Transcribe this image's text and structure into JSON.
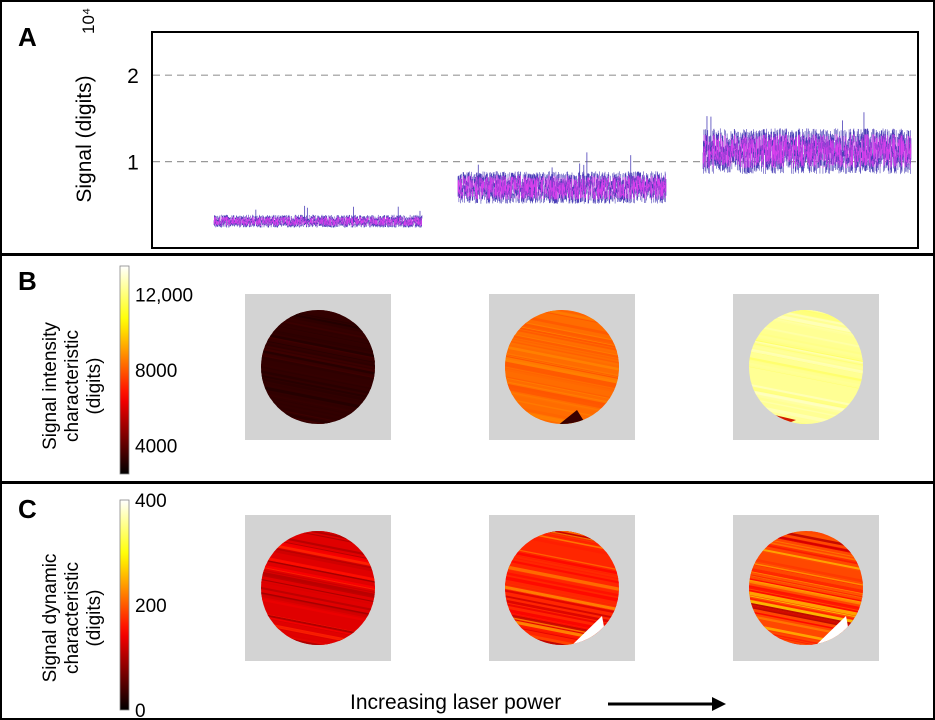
{
  "panels": {
    "a": {
      "letter": "A",
      "exponent_label": "10⁴",
      "ylabel": "Signal (digits)"
    },
    "b": {
      "letter": "B",
      "colorbar_title": [
        "Signal intensity",
        "characteristic",
        "(digits)"
      ]
    },
    "c": {
      "letter": "C",
      "colorbar_title": [
        "Signal dynamic",
        "characteristic",
        "(digits)"
      ]
    }
  },
  "caption": "Increasing laser power",
  "colors": {
    "trace_main": "#e040f0",
    "trace_edge": "#4b3fb8",
    "grid": "#999999",
    "map_background": "#d3d3d3"
  },
  "chart_data": [
    {
      "type": "line",
      "panel": "A",
      "ylabel": "Signal (digits)",
      "y_multiplier": "10^4",
      "yticks": [
        1,
        2
      ],
      "ytick_labels": [
        "1",
        "2"
      ],
      "ylim": [
        0,
        2.5
      ],
      "grid": "dashed horizontal at y=1 and y=2",
      "series": [
        {
          "mean": 0.31,
          "min": 0.22,
          "max": 0.52
        },
        {
          "mean": 0.7,
          "min": 0.36,
          "max": 1.12
        },
        {
          "mean": 1.12,
          "min": 0.55,
          "max": 1.62
        }
      ]
    },
    {
      "type": "heatmap",
      "panel": "B",
      "colorbar_ticks": [
        4000,
        8000,
        12000
      ],
      "colorbar_tick_labels": [
        "4000",
        "8000",
        "12,000"
      ],
      "colorbar_range": [
        2500,
        13500
      ],
      "maps": [
        {
          "mean_value": 3300
        },
        {
          "mean_value": 8300
        },
        {
          "mean_value": 12300
        }
      ]
    },
    {
      "type": "heatmap",
      "panel": "C",
      "colorbar_ticks": [
        0,
        200,
        400
      ],
      "colorbar_tick_labels": [
        "0",
        "200",
        "400"
      ],
      "colorbar_range": [
        0,
        400
      ],
      "maps": [
        {
          "mean_value": 130
        },
        {
          "mean_value": 170
        },
        {
          "mean_value": 190
        }
      ]
    }
  ]
}
